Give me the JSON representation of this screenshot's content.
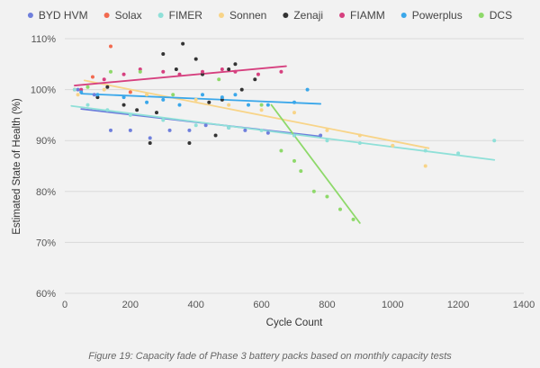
{
  "caption": "Figure 19: Capacity fade of Phase 3 battery packs based on monthly capacity tests",
  "chart_data": {
    "type": "scatter",
    "title": "",
    "xlabel": "Cycle Count",
    "ylabel": "Estimated State of Health (%)",
    "xlim": [
      0,
      1400
    ],
    "ylim": [
      60,
      110
    ],
    "x_ticks": [
      "0",
      "200",
      "400",
      "600",
      "800",
      "1000",
      "1200",
      "1400"
    ],
    "y_ticks": [
      "60%",
      "70%",
      "80%",
      "90%",
      "100%",
      "110%"
    ],
    "x_tick_values": [
      0,
      200,
      400,
      600,
      800,
      1000,
      1200,
      1400
    ],
    "y_tick_values": [
      60,
      70,
      80,
      90,
      100,
      110
    ],
    "grid": "horizontal",
    "legend_position": "top",
    "series": [
      {
        "name": "BYD HVM",
        "color": "#6f7fdc",
        "points": [
          [
            40,
            100
          ],
          [
            90,
            99
          ],
          [
            140,
            92
          ],
          [
            200,
            92
          ],
          [
            260,
            90.5
          ],
          [
            320,
            92
          ],
          [
            380,
            92
          ],
          [
            430,
            93
          ],
          [
            500,
            92.5
          ],
          [
            550,
            92
          ],
          [
            620,
            91.5
          ],
          [
            700,
            91
          ],
          [
            780,
            91
          ]
        ],
        "trend": [
          [
            50,
            96.2
          ],
          [
            780,
            90.8
          ]
        ]
      },
      {
        "name": "Solax",
        "color": "#f26a4f",
        "points": [
          [
            30,
            100
          ],
          [
            85,
            102.5
          ],
          [
            140,
            108.5
          ],
          [
            200,
            99.5
          ]
        ],
        "trend": null
      },
      {
        "name": "FIMER",
        "color": "#8fe0d8",
        "points": [
          [
            30,
            100
          ],
          [
            70,
            97
          ],
          [
            130,
            96
          ],
          [
            200,
            95
          ],
          [
            300,
            94
          ],
          [
            400,
            93
          ],
          [
            500,
            92.5
          ],
          [
            600,
            92
          ],
          [
            700,
            91
          ],
          [
            800,
            90
          ],
          [
            900,
            89.5
          ],
          [
            1000,
            89
          ],
          [
            1100,
            88
          ],
          [
            1200,
            87.5
          ],
          [
            1310,
            90
          ]
        ],
        "trend": [
          [
            20,
            96.8
          ],
          [
            1310,
            86.2
          ]
        ]
      },
      {
        "name": "Sonnen",
        "color": "#f8d488",
        "points": [
          [
            40,
            99
          ],
          [
            120,
            100
          ],
          [
            250,
            99
          ],
          [
            400,
            98
          ],
          [
            500,
            97
          ],
          [
            600,
            96
          ],
          [
            700,
            95.5
          ],
          [
            800,
            92
          ],
          [
            900,
            91
          ],
          [
            1000,
            89
          ],
          [
            1100,
            85
          ]
        ],
        "trend": [
          [
            60,
            101.8
          ],
          [
            1110,
            88.5
          ]
        ]
      },
      {
        "name": "Zenaji",
        "color": "#333333",
        "points": [
          [
            100,
            98.5
          ],
          [
            130,
            100.5
          ],
          [
            180,
            97
          ],
          [
            220,
            96
          ],
          [
            260,
            89.5
          ],
          [
            280,
            95.5
          ],
          [
            300,
            107
          ],
          [
            340,
            104
          ],
          [
            360,
            109
          ],
          [
            380,
            89.5
          ],
          [
            400,
            106
          ],
          [
            420,
            103
          ],
          [
            440,
            97.5
          ],
          [
            460,
            91
          ],
          [
            480,
            98
          ],
          [
            500,
            104
          ],
          [
            520,
            105
          ],
          [
            540,
            100
          ],
          [
            580,
            102
          ]
        ],
        "trend": null
      },
      {
        "name": "FIAMM",
        "color": "#d6407f",
        "points": [
          [
            50,
            100
          ],
          [
            120,
            102
          ],
          [
            180,
            103
          ],
          [
            230,
            104
          ],
          [
            300,
            103.5
          ],
          [
            350,
            103
          ],
          [
            420,
            103.5
          ],
          [
            480,
            104
          ],
          [
            520,
            103.5
          ],
          [
            590,
            103
          ],
          [
            660,
            103.5
          ]
        ],
        "trend": [
          [
            30,
            100.8
          ],
          [
            675,
            104.6
          ]
        ]
      },
      {
        "name": "Powerplus",
        "color": "#3aa7ea",
        "points": [
          [
            50,
            99.5
          ],
          [
            100,
            99
          ],
          [
            180,
            98.5
          ],
          [
            250,
            97.5
          ],
          [
            300,
            98
          ],
          [
            350,
            97
          ],
          [
            420,
            99
          ],
          [
            480,
            98.5
          ],
          [
            520,
            99
          ],
          [
            560,
            97
          ],
          [
            620,
            97
          ],
          [
            700,
            97.5
          ],
          [
            740,
            100
          ]
        ],
        "trend": [
          [
            50,
            99.2
          ],
          [
            780,
            97.2
          ]
        ]
      },
      {
        "name": "DCS",
        "color": "#8ed96a",
        "points": [
          [
            70,
            100.5
          ],
          [
            140,
            103.5
          ],
          [
            230,
            103.5
          ],
          [
            330,
            99
          ],
          [
            470,
            102
          ],
          [
            600,
            97
          ],
          [
            660,
            88
          ],
          [
            700,
            86
          ],
          [
            720,
            84
          ],
          [
            760,
            80
          ],
          [
            800,
            79
          ],
          [
            840,
            76.5
          ],
          [
            880,
            74.5
          ]
        ],
        "trend": [
          [
            630,
            97
          ],
          [
            900,
            73.8
          ]
        ]
      }
    ]
  }
}
